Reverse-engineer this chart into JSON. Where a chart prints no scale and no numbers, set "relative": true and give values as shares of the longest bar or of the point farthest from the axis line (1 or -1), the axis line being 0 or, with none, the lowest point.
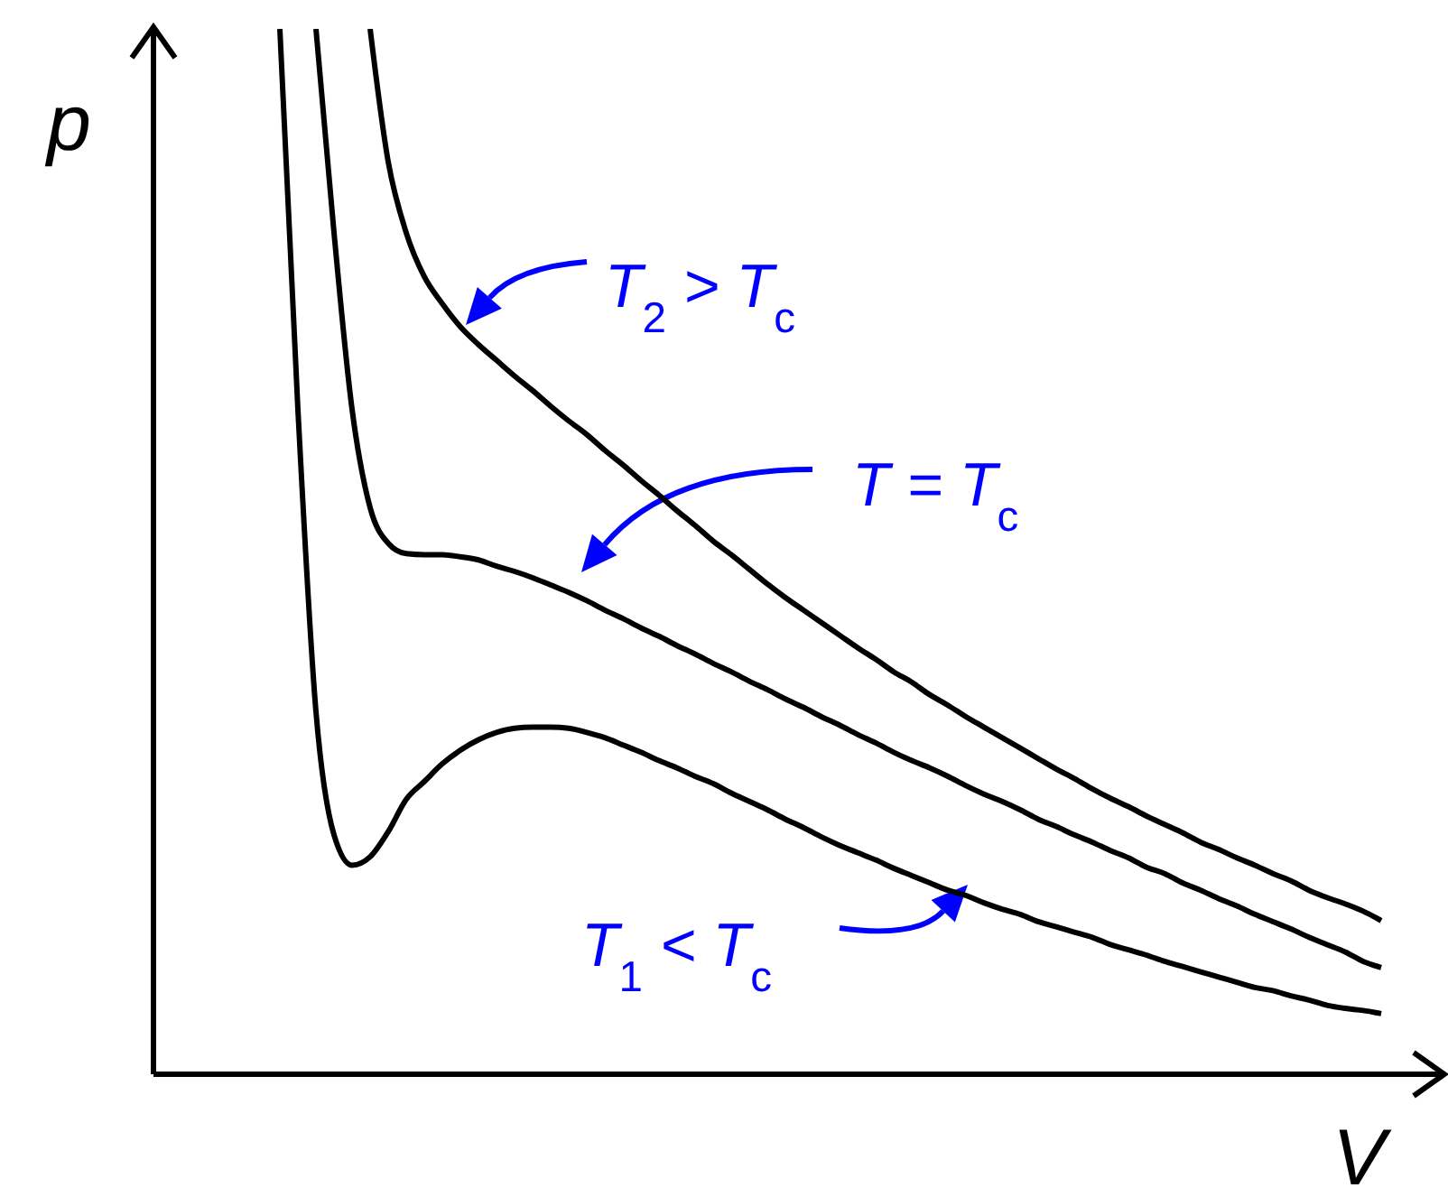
{
  "chart_data": {
    "type": "line",
    "relative": true,
    "xlabel": "V",
    "ylabel": "p",
    "line_style": "solid",
    "categories": [
      null,
      null,
      null,
      null,
      null,
      null,
      null,
      null,
      null,
      null,
      null,
      null,
      null,
      null,
      null,
      null,
      null,
      null,
      null,
      null,
      null,
      null,
      null,
      null,
      null,
      null,
      null,
      null,
      null,
      null,
      null,
      null,
      null,
      null,
      null,
      null,
      null,
      null,
      null,
      null,
      null,
      null,
      null,
      null,
      null,
      null,
      null,
      null,
      null,
      null,
      null,
      null,
      null,
      null,
      null,
      null,
      null,
      null,
      null,
      null,
      null,
      null,
      null,
      null,
      null,
      null,
      null,
      null,
      null
    ],
    "series": [
      {
        "color": "#000000",
        "values": [
          null,
          null,
          null,
          null,
          null,
          null,
          null,
          null,
          null,
          null,
          null,
          null,
          1.0,
          0.873,
          0.805,
          0.763,
          0.737,
          0.715,
          0.698,
          0.683,
          0.668,
          0.654,
          0.639,
          0.625,
          0.612,
          0.597,
          0.583,
          0.568,
          0.554,
          0.539,
          0.525,
          0.51,
          0.497,
          0.483,
          0.469,
          0.456,
          0.444,
          0.432,
          0.42,
          0.408,
          0.397,
          0.385,
          0.375,
          0.363,
          0.353,
          0.342,
          0.332,
          0.322,
          0.312,
          0.302,
          0.292,
          0.283,
          0.273,
          0.264,
          0.256,
          0.247,
          0.239,
          0.231,
          0.222,
          0.215,
          0.207,
          0.2,
          0.192,
          0.185,
          0.176,
          0.169,
          0.163,
          0.156,
          0.147
        ]
      },
      {
        "color": "#000000",
        "values": [
          null,
          null,
          null,
          null,
          null,
          null,
          null,
          null,
          null,
          1.0,
          0.805,
          0.636,
          0.542,
          0.508,
          0.498,
          0.497,
          0.497,
          0.495,
          0.492,
          0.486,
          0.481,
          0.475,
          0.468,
          0.461,
          0.453,
          0.444,
          0.436,
          0.427,
          0.419,
          0.41,
          0.402,
          0.393,
          0.385,
          0.376,
          0.368,
          0.359,
          0.351,
          0.342,
          0.334,
          0.325,
          0.317,
          0.308,
          0.3,
          0.293,
          0.285,
          0.276,
          0.268,
          0.261,
          0.253,
          0.244,
          0.237,
          0.229,
          0.222,
          0.214,
          0.207,
          0.198,
          0.192,
          0.183,
          0.176,
          0.168,
          0.161,
          0.153,
          0.146,
          0.139,
          0.131,
          0.124,
          0.117,
          0.108,
          0.102
        ]
      },
      {
        "color": "#000000",
        "values": [
          null,
          null,
          null,
          null,
          null,
          null,
          null,
          1.0,
          0.636,
          0.347,
          0.229,
          0.2,
          0.208,
          0.232,
          0.263,
          0.28,
          0.297,
          0.31,
          0.32,
          0.327,
          0.331,
          0.332,
          0.332,
          0.331,
          0.327,
          0.322,
          0.315,
          0.308,
          0.3,
          0.293,
          0.285,
          0.278,
          0.269,
          0.261,
          0.253,
          0.244,
          0.236,
          0.227,
          0.219,
          0.212,
          0.205,
          0.197,
          0.19,
          0.183,
          0.176,
          0.171,
          0.164,
          0.158,
          0.153,
          0.146,
          0.141,
          0.136,
          0.131,
          0.124,
          0.119,
          0.114,
          0.108,
          0.103,
          0.098,
          0.093,
          0.088,
          0.083,
          0.08,
          0.075,
          0.071,
          0.066,
          0.063,
          0.061,
          0.058
        ]
      }
    ],
    "annotations": [
      "T$_{2}$ > T$_{c}$",
      "T = T$_{c}$",
      "T$_{1}$ < T$_{c}$"
    ]
  }
}
